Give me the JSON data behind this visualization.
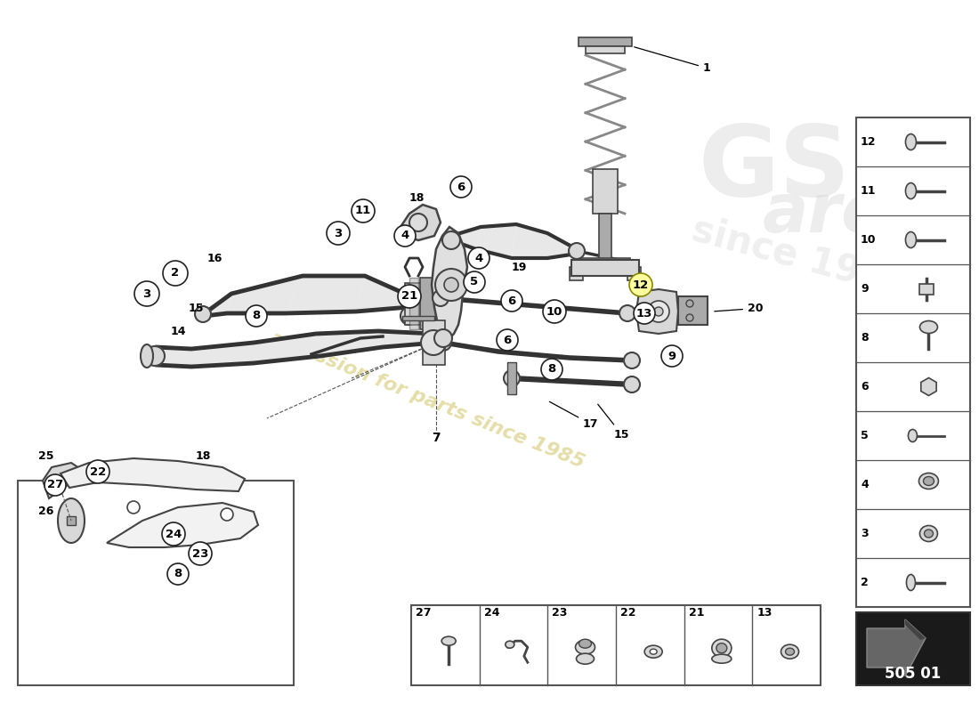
{
  "bg_color": "#ffffff",
  "page_code": "505 01",
  "watermark_text": "a passion for parts since 1985",
  "watermark_color": "#d4c870",
  "right_panel_items": [
    {
      "num": "12",
      "has_bolt": true
    },
    {
      "num": "11",
      "has_bolt": true
    },
    {
      "num": "10",
      "has_bolt": true
    },
    {
      "num": "9",
      "has_bolt": false,
      "has_nut": true
    },
    {
      "num": "8",
      "has_bolt": false,
      "has_nut": true
    },
    {
      "num": "6",
      "has_bolt": false,
      "has_nut": true
    },
    {
      "num": "5",
      "has_bolt": true
    },
    {
      "num": "4",
      "has_bolt": false,
      "has_nut": true
    },
    {
      "num": "3",
      "has_bolt": false,
      "has_nut": true
    },
    {
      "num": "2",
      "has_bolt": true
    }
  ],
  "bottom_panel_items": [
    "27",
    "24",
    "23",
    "22",
    "21",
    "13"
  ],
  "label_circle_r": 14,
  "label_circle_fc": "#ffffff",
  "label_circle_ec": "#222222",
  "label_fontsize": 9.5,
  "line_color": "#333333",
  "part_color_light": "#d8d8d8",
  "part_color_dark": "#aaaaaa",
  "part_ec": "#444444"
}
